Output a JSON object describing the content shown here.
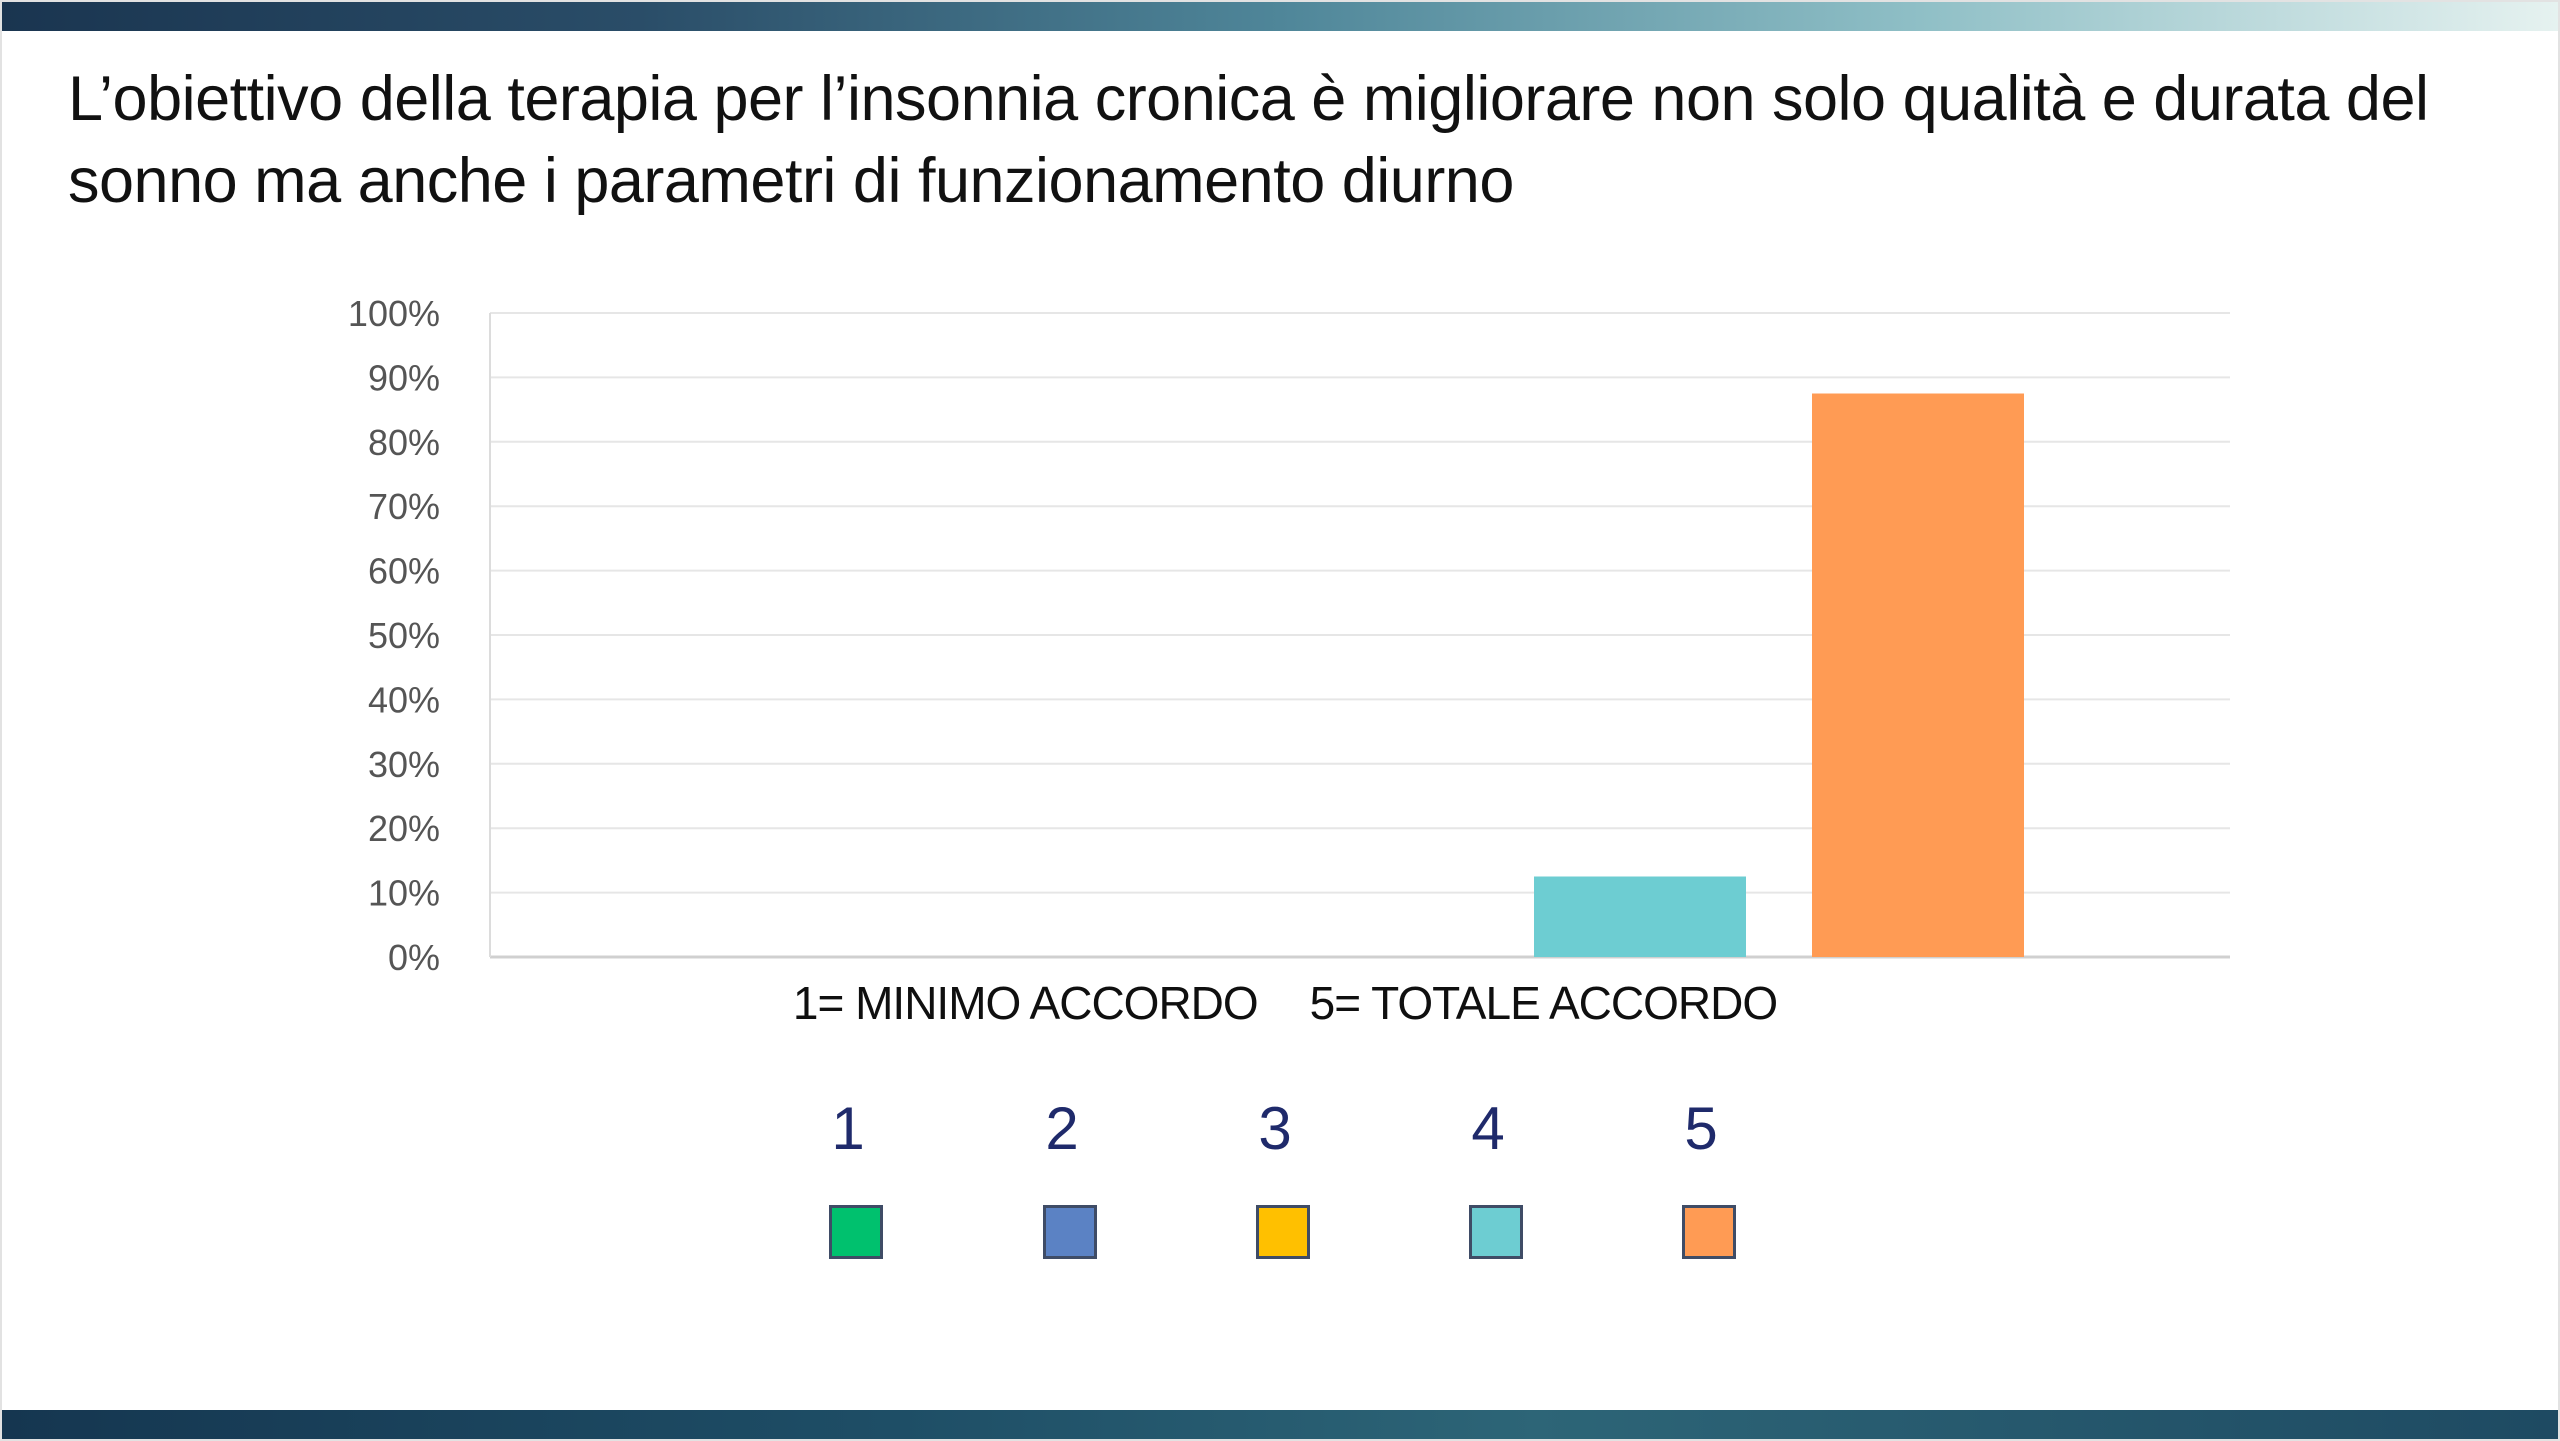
{
  "slide": {
    "title": "L’obiettivo della terapia per l’insonnia cronica è migliorare non solo  qualità e durata del sonno ma anche i parametri di funzionamento diurno"
  },
  "chart_data": {
    "type": "bar",
    "categories": [
      "1",
      "2",
      "3",
      "4",
      "5"
    ],
    "values": [
      0,
      0,
      0,
      12.5,
      87.5
    ],
    "colors": [
      "#00c16e",
      "#5b82c4",
      "#ffc000",
      "#6dcdd2",
      "#ff9b54"
    ],
    "ylim": [
      0,
      100
    ],
    "yticks": [
      "0%",
      "10%",
      "20%",
      "30%",
      "40%",
      "50%",
      "60%",
      "70%",
      "80%",
      "90%",
      "100%"
    ],
    "grid": true,
    "legend": "below"
  },
  "scale_caption": {
    "left": "1= MINIMO ACCORDO",
    "right": "5= TOTALE ACCORDO"
  },
  "legend": {
    "items": [
      {
        "label": "1",
        "color": "#00c16e"
      },
      {
        "label": "2",
        "color": "#5b82c4"
      },
      {
        "label": "3",
        "color": "#ffc000"
      },
      {
        "label": "4",
        "color": "#6dcdd2"
      },
      {
        "label": "5",
        "color": "#ff9b54"
      }
    ]
  },
  "theme": {
    "top_band": "#1a3550",
    "bottom_band": "#153650",
    "axis_text": "#555555"
  }
}
